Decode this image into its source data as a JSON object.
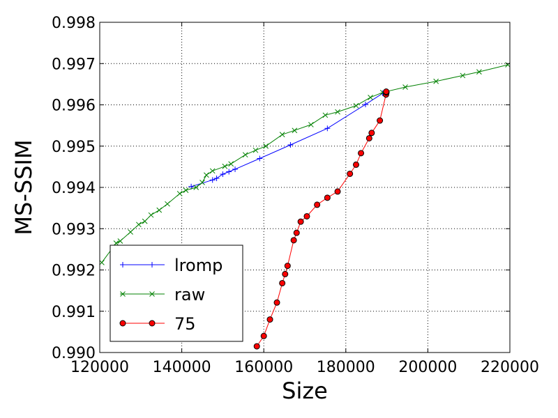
{
  "chart_data": {
    "type": "line",
    "title": "",
    "xlabel": "Size",
    "ylabel": "MS-SSIM",
    "xlim": [
      120000,
      220000
    ],
    "ylim": [
      0.99,
      0.998
    ],
    "xticks": [
      120000,
      140000,
      160000,
      180000,
      200000,
      220000
    ],
    "xtick_labels": [
      "120000",
      "140000",
      "160000",
      "180000",
      "200000",
      "220000"
    ],
    "yticks": [
      0.99,
      0.991,
      0.992,
      0.993,
      0.994,
      0.995,
      0.996,
      0.997,
      0.998
    ],
    "ytick_labels": [
      "0.990",
      "0.991",
      "0.992",
      "0.993",
      "0.994",
      "0.995",
      "0.996",
      "0.997",
      "0.998"
    ],
    "grid": true,
    "legend_position": "bottom-left",
    "series": [
      {
        "name": "lromp",
        "color": "#0000ff",
        "marker": "plus",
        "points": [
          [
            142300,
            0.99402
          ],
          [
            147500,
            0.99418
          ],
          [
            148500,
            0.99422
          ],
          [
            150000,
            0.99432
          ],
          [
            151500,
            0.99438
          ],
          [
            153000,
            0.99444
          ],
          [
            159000,
            0.9947
          ],
          [
            166500,
            0.99503
          ],
          [
            175500,
            0.99543
          ],
          [
            184800,
            0.99601
          ],
          [
            189000,
            0.99628
          ]
        ]
      },
      {
        "name": "raw",
        "color": "#008000",
        "marker": "x",
        "points": [
          [
            120500,
            0.99218
          ],
          [
            124000,
            0.99265
          ],
          [
            125000,
            0.9927
          ],
          [
            127500,
            0.99292
          ],
          [
            129500,
            0.9931
          ],
          [
            131000,
            0.99318
          ],
          [
            132500,
            0.99333
          ],
          [
            134500,
            0.99345
          ],
          [
            136500,
            0.9936
          ],
          [
            139500,
            0.99385
          ],
          [
            141000,
            0.99393
          ],
          [
            143500,
            0.994
          ],
          [
            145000,
            0.99412
          ],
          [
            146000,
            0.9943
          ],
          [
            147500,
            0.9944
          ],
          [
            150500,
            0.99451
          ],
          [
            152000,
            0.99457
          ],
          [
            155500,
            0.99479
          ],
          [
            158000,
            0.9949
          ],
          [
            160500,
            0.995
          ],
          [
            164500,
            0.99528
          ],
          [
            167500,
            0.99538
          ],
          [
            171500,
            0.99552
          ],
          [
            175000,
            0.99575
          ],
          [
            178000,
            0.99583
          ],
          [
            182500,
            0.99598
          ],
          [
            186000,
            0.99618
          ],
          [
            189000,
            0.9963
          ],
          [
            194500,
            0.99643
          ],
          [
            202000,
            0.99657
          ],
          [
            208500,
            0.99671
          ],
          [
            212500,
            0.9968
          ],
          [
            219500,
            0.99697
          ]
        ]
      },
      {
        "name": "75",
        "color": "#ff0000",
        "marker": "circle",
        "points": [
          [
            158300,
            0.99015
          ],
          [
            160000,
            0.9904
          ],
          [
            161500,
            0.9908
          ],
          [
            163200,
            0.99121
          ],
          [
            164500,
            0.99168
          ],
          [
            165200,
            0.9919
          ],
          [
            165800,
            0.9921
          ],
          [
            167300,
            0.99272
          ],
          [
            168000,
            0.9929
          ],
          [
            169000,
            0.99317
          ],
          [
            170500,
            0.9933
          ],
          [
            173000,
            0.99358
          ],
          [
            175500,
            0.99375
          ],
          [
            178000,
            0.9939
          ],
          [
            181000,
            0.99433
          ],
          [
            182500,
            0.99455
          ],
          [
            183700,
            0.99483
          ],
          [
            185700,
            0.99519
          ],
          [
            186300,
            0.99532
          ],
          [
            188300,
            0.99562
          ],
          [
            189800,
            0.99625
          ],
          [
            189900,
            0.9963
          ],
          [
            189850,
            0.99632
          ]
        ]
      }
    ]
  }
}
